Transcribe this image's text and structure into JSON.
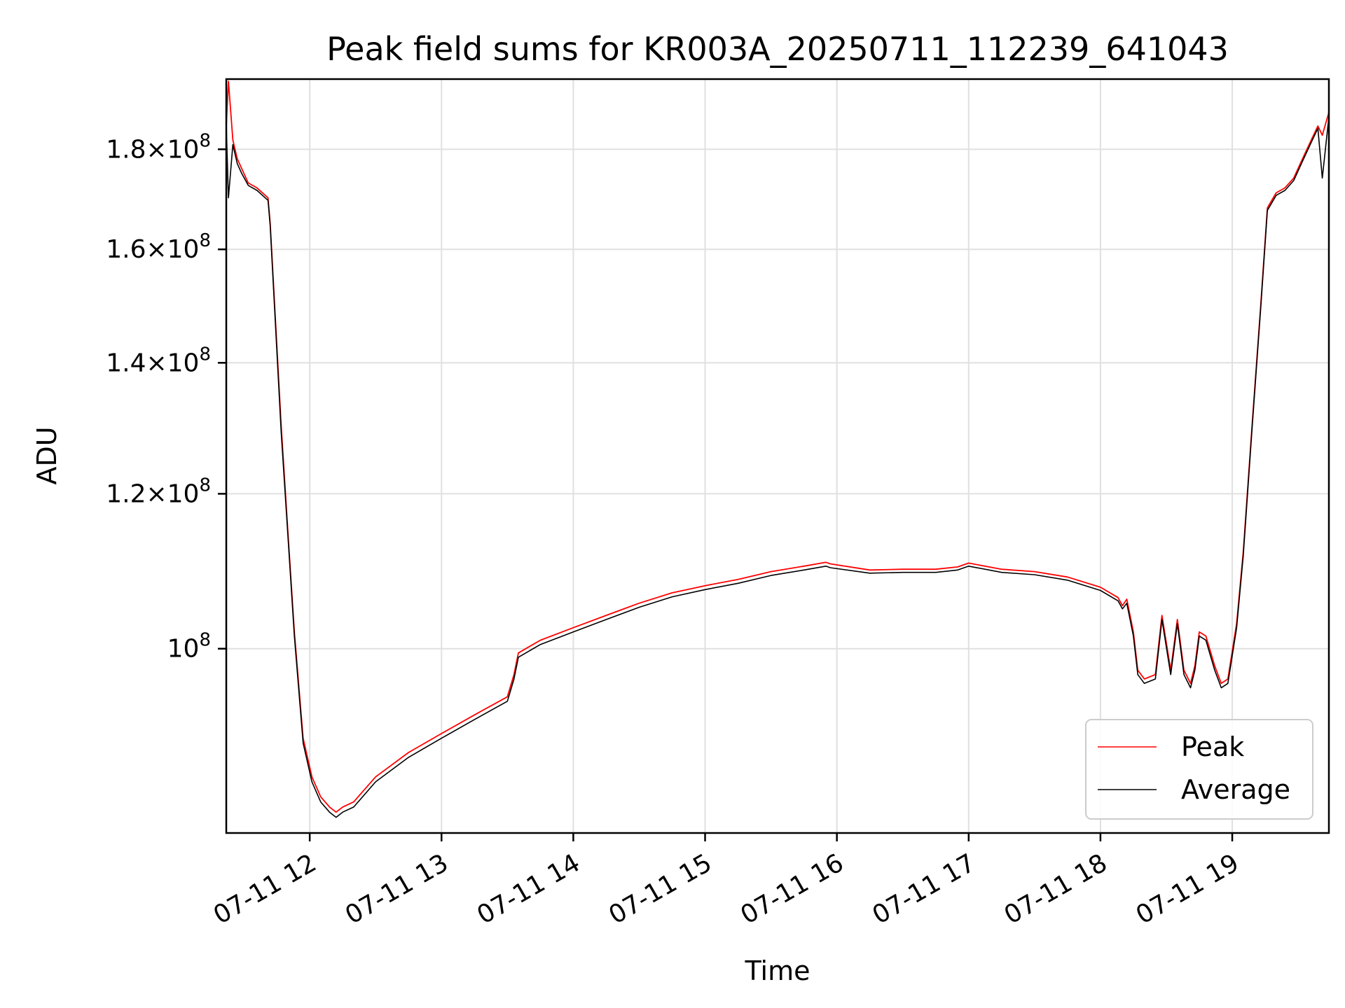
{
  "chart_data": {
    "type": "line",
    "title": "Peak field sums for KR003A_20250711_112239_641043",
    "xlabel": "Time",
    "ylabel": "ADU",
    "y_scale": "log",
    "grid": true,
    "legend_position": "lower right",
    "xlim": [
      "2025-07-11 11:22",
      "2025-07-11 19:44"
    ],
    "ylim": [
      80500000.0,
      195500000.0
    ],
    "x_tick_labels": [
      "07-11 12",
      "07-11 13",
      "07-11 14",
      "07-11 15",
      "07-11 16",
      "07-11 17",
      "07-11 18",
      "07-11 19"
    ],
    "x_ticks": [
      "2025-07-11 12:00",
      "2025-07-11 13:00",
      "2025-07-11 14:00",
      "2025-07-11 15:00",
      "2025-07-11 16:00",
      "2025-07-11 17:00",
      "2025-07-11 18:00",
      "2025-07-11 19:00"
    ],
    "y_ticks": [
      {
        "value": 100000000.0,
        "mantissa": "",
        "exponent": "8"
      },
      {
        "value": 120000000.0,
        "mantissa": "1.2",
        "exponent": "8"
      },
      {
        "value": 140000000.0,
        "mantissa": "1.4",
        "exponent": "8"
      },
      {
        "value": 160000000.0,
        "mantissa": "1.6",
        "exponent": "8"
      },
      {
        "value": 180000000.0,
        "mantissa": "1.8",
        "exponent": "8"
      }
    ],
    "series": [
      {
        "name": "Peak",
        "color": "#ff0000",
        "x": [
          "2025-07-11 11:22",
          "2025-07-11 11:23",
          "2025-07-11 11:25",
          "2025-07-11 11:26",
          "2025-07-11 11:27",
          "2025-07-11 11:29",
          "2025-07-11 11:32",
          "2025-07-11 11:36",
          "2025-07-11 11:41",
          "2025-07-11 11:42",
          "2025-07-11 11:47",
          "2025-07-11 11:50",
          "2025-07-11 11:53",
          "2025-07-11 11:57",
          "2025-07-11 12:01",
          "2025-07-11 12:05",
          "2025-07-11 12:09",
          "2025-07-11 12:12",
          "2025-07-11 12:15",
          "2025-07-11 12:20",
          "2025-07-11 12:30",
          "2025-07-11 12:45",
          "2025-07-11 13:00",
          "2025-07-11 13:15",
          "2025-07-11 13:30",
          "2025-07-11 13:33",
          "2025-07-11 13:35",
          "2025-07-11 13:45",
          "2025-07-11 14:00",
          "2025-07-11 14:15",
          "2025-07-11 14:30",
          "2025-07-11 14:45",
          "2025-07-11 15:00",
          "2025-07-11 15:15",
          "2025-07-11 15:30",
          "2025-07-11 15:45",
          "2025-07-11 15:55",
          "2025-07-11 15:57",
          "2025-07-11 16:15",
          "2025-07-11 16:30",
          "2025-07-11 16:45",
          "2025-07-11 16:55",
          "2025-07-11 17:00",
          "2025-07-11 17:15",
          "2025-07-11 17:30",
          "2025-07-11 17:45",
          "2025-07-11 18:00",
          "2025-07-11 18:08",
          "2025-07-11 18:10",
          "2025-07-11 18:12",
          "2025-07-11 18:15",
          "2025-07-11 18:17",
          "2025-07-11 18:20",
          "2025-07-11 18:25",
          "2025-07-11 18:28",
          "2025-07-11 18:32",
          "2025-07-11 18:35",
          "2025-07-11 18:38",
          "2025-07-11 18:41",
          "2025-07-11 18:43",
          "2025-07-11 18:45",
          "2025-07-11 18:48",
          "2025-07-11 18:52",
          "2025-07-11 18:55",
          "2025-07-11 18:58",
          "2025-07-11 19:02",
          "2025-07-11 19:05",
          "2025-07-11 19:09",
          "2025-07-11 19:13",
          "2025-07-11 19:16",
          "2025-07-11 19:20",
          "2025-07-11 19:24",
          "2025-07-11 19:28",
          "2025-07-11 19:32",
          "2025-07-11 19:36",
          "2025-07-11 19:39",
          "2025-07-11 19:41",
          "2025-07-11 19:44"
        ],
        "y": [
          185000000.0,
          195000000.0,
          182000000.0,
          180000000.0,
          178000000.0,
          176000000.0,
          173000000.0,
          172000000.0,
          170000000.0,
          165000000.0,
          130000000.0,
          115000000.0,
          102000000.0,
          90000000.0,
          86000000.0,
          84000000.0,
          83000000.0,
          82500000.0,
          83000000.0,
          83500000.0,
          86000000.0,
          88500000.0,
          90500000.0,
          92500000.0,
          94500000.0,
          97000000.0,
          99500000.0,
          101000000.0,
          102500000.0,
          104000000.0,
          105500000.0,
          106800000.0,
          107700000.0,
          108500000.0,
          109500000.0,
          110200000.0,
          110700000.0,
          110500000.0,
          109700000.0,
          109800000.0,
          109800000.0,
          110100000.0,
          110600000.0,
          109800000.0,
          109500000.0,
          108800000.0,
          107500000.0,
          106200000.0,
          105200000.0,
          106000000.0,
          102000000.0,
          97500000.0,
          96500000.0,
          97000000.0,
          104000000.0,
          97500000.0,
          103500000.0,
          97500000.0,
          96000000.0,
          98000000.0,
          102000000.0,
          101500000.0,
          98000000.0,
          96000000.0,
          96500000.0,
          103000000.0,
          112000000.0,
          130000000.0,
          150000000.0,
          168000000.0,
          171000000.0,
          172000000.0,
          174000000.0,
          178000000.0,
          182000000.0,
          185000000.0,
          183000000.0,
          188000000.0
        ]
      },
      {
        "name": "Average",
        "color": "#000000",
        "x": [
          "2025-07-11 11:22",
          "2025-07-11 11:23",
          "2025-07-11 11:25",
          "2025-07-11 11:26",
          "2025-07-11 11:27",
          "2025-07-11 11:29",
          "2025-07-11 11:32",
          "2025-07-11 11:36",
          "2025-07-11 11:41",
          "2025-07-11 11:42",
          "2025-07-11 11:47",
          "2025-07-11 11:50",
          "2025-07-11 11:53",
          "2025-07-11 11:57",
          "2025-07-11 12:01",
          "2025-07-11 12:05",
          "2025-07-11 12:09",
          "2025-07-11 12:12",
          "2025-07-11 12:15",
          "2025-07-11 12:20",
          "2025-07-11 12:30",
          "2025-07-11 12:45",
          "2025-07-11 13:00",
          "2025-07-11 13:15",
          "2025-07-11 13:30",
          "2025-07-11 13:33",
          "2025-07-11 13:35",
          "2025-07-11 13:45",
          "2025-07-11 14:00",
          "2025-07-11 14:15",
          "2025-07-11 14:30",
          "2025-07-11 14:45",
          "2025-07-11 15:00",
          "2025-07-11 15:15",
          "2025-07-11 15:30",
          "2025-07-11 15:45",
          "2025-07-11 15:55",
          "2025-07-11 15:57",
          "2025-07-11 16:15",
          "2025-07-11 16:30",
          "2025-07-11 16:45",
          "2025-07-11 16:55",
          "2025-07-11 17:00",
          "2025-07-11 17:15",
          "2025-07-11 17:30",
          "2025-07-11 17:45",
          "2025-07-11 18:00",
          "2025-07-11 18:08",
          "2025-07-11 18:10",
          "2025-07-11 18:12",
          "2025-07-11 18:15",
          "2025-07-11 18:17",
          "2025-07-11 18:20",
          "2025-07-11 18:25",
          "2025-07-11 18:28",
          "2025-07-11 18:32",
          "2025-07-11 18:35",
          "2025-07-11 18:38",
          "2025-07-11 18:41",
          "2025-07-11 18:43",
          "2025-07-11 18:45",
          "2025-07-11 18:48",
          "2025-07-11 18:52",
          "2025-07-11 18:55",
          "2025-07-11 18:58",
          "2025-07-11 19:02",
          "2025-07-11 19:05",
          "2025-07-11 19:09",
          "2025-07-11 19:13",
          "2025-07-11 19:16",
          "2025-07-11 19:20",
          "2025-07-11 19:24",
          "2025-07-11 19:28",
          "2025-07-11 19:32",
          "2025-07-11 19:36",
          "2025-07-11 19:39",
          "2025-07-11 19:41",
          "2025-07-11 19:44"
        ],
        "y": [
          185000000.0,
          170000000.0,
          181000000.0,
          179000000.0,
          177000000.0,
          175000000.0,
          172500000.0,
          171500000.0,
          169500000.0,
          164500000.0,
          129000000.0,
          114500000.0,
          101500000.0,
          89500000.0,
          85500000.0,
          83500000.0,
          82500000.0,
          82000000.0,
          82500000.0,
          83000000.0,
          85500000.0,
          88000000.0,
          90000000.0,
          92000000.0,
          94000000.0,
          96500000.0,
          99000000.0,
          100500000.0,
          102000000.0,
          103500000.0,
          105000000.0,
          106300000.0,
          107200000.0,
          108000000.0,
          109000000.0,
          109700000.0,
          110200000.0,
          110000000.0,
          109300000.0,
          109400000.0,
          109400000.0,
          109700000.0,
          110200000.0,
          109400000.0,
          109100000.0,
          108400000.0,
          107100000.0,
          105800000.0,
          104800000.0,
          105500000.0,
          101500000.0,
          97000000.0,
          96000000.0,
          96500000.0,
          103500000.0,
          97000000.0,
          103000000.0,
          97000000.0,
          95500000.0,
          97500000.0,
          101500000.0,
          101000000.0,
          97500000.0,
          95500000.0,
          96000000.0,
          102500000.0,
          111500000.0,
          129500000.0,
          149500000.0,
          167500000.0,
          170500000.0,
          171500000.0,
          173500000.0,
          177500000.0,
          181500000.0,
          184500000.0,
          174000000.0,
          187000000.0
        ]
      }
    ]
  }
}
